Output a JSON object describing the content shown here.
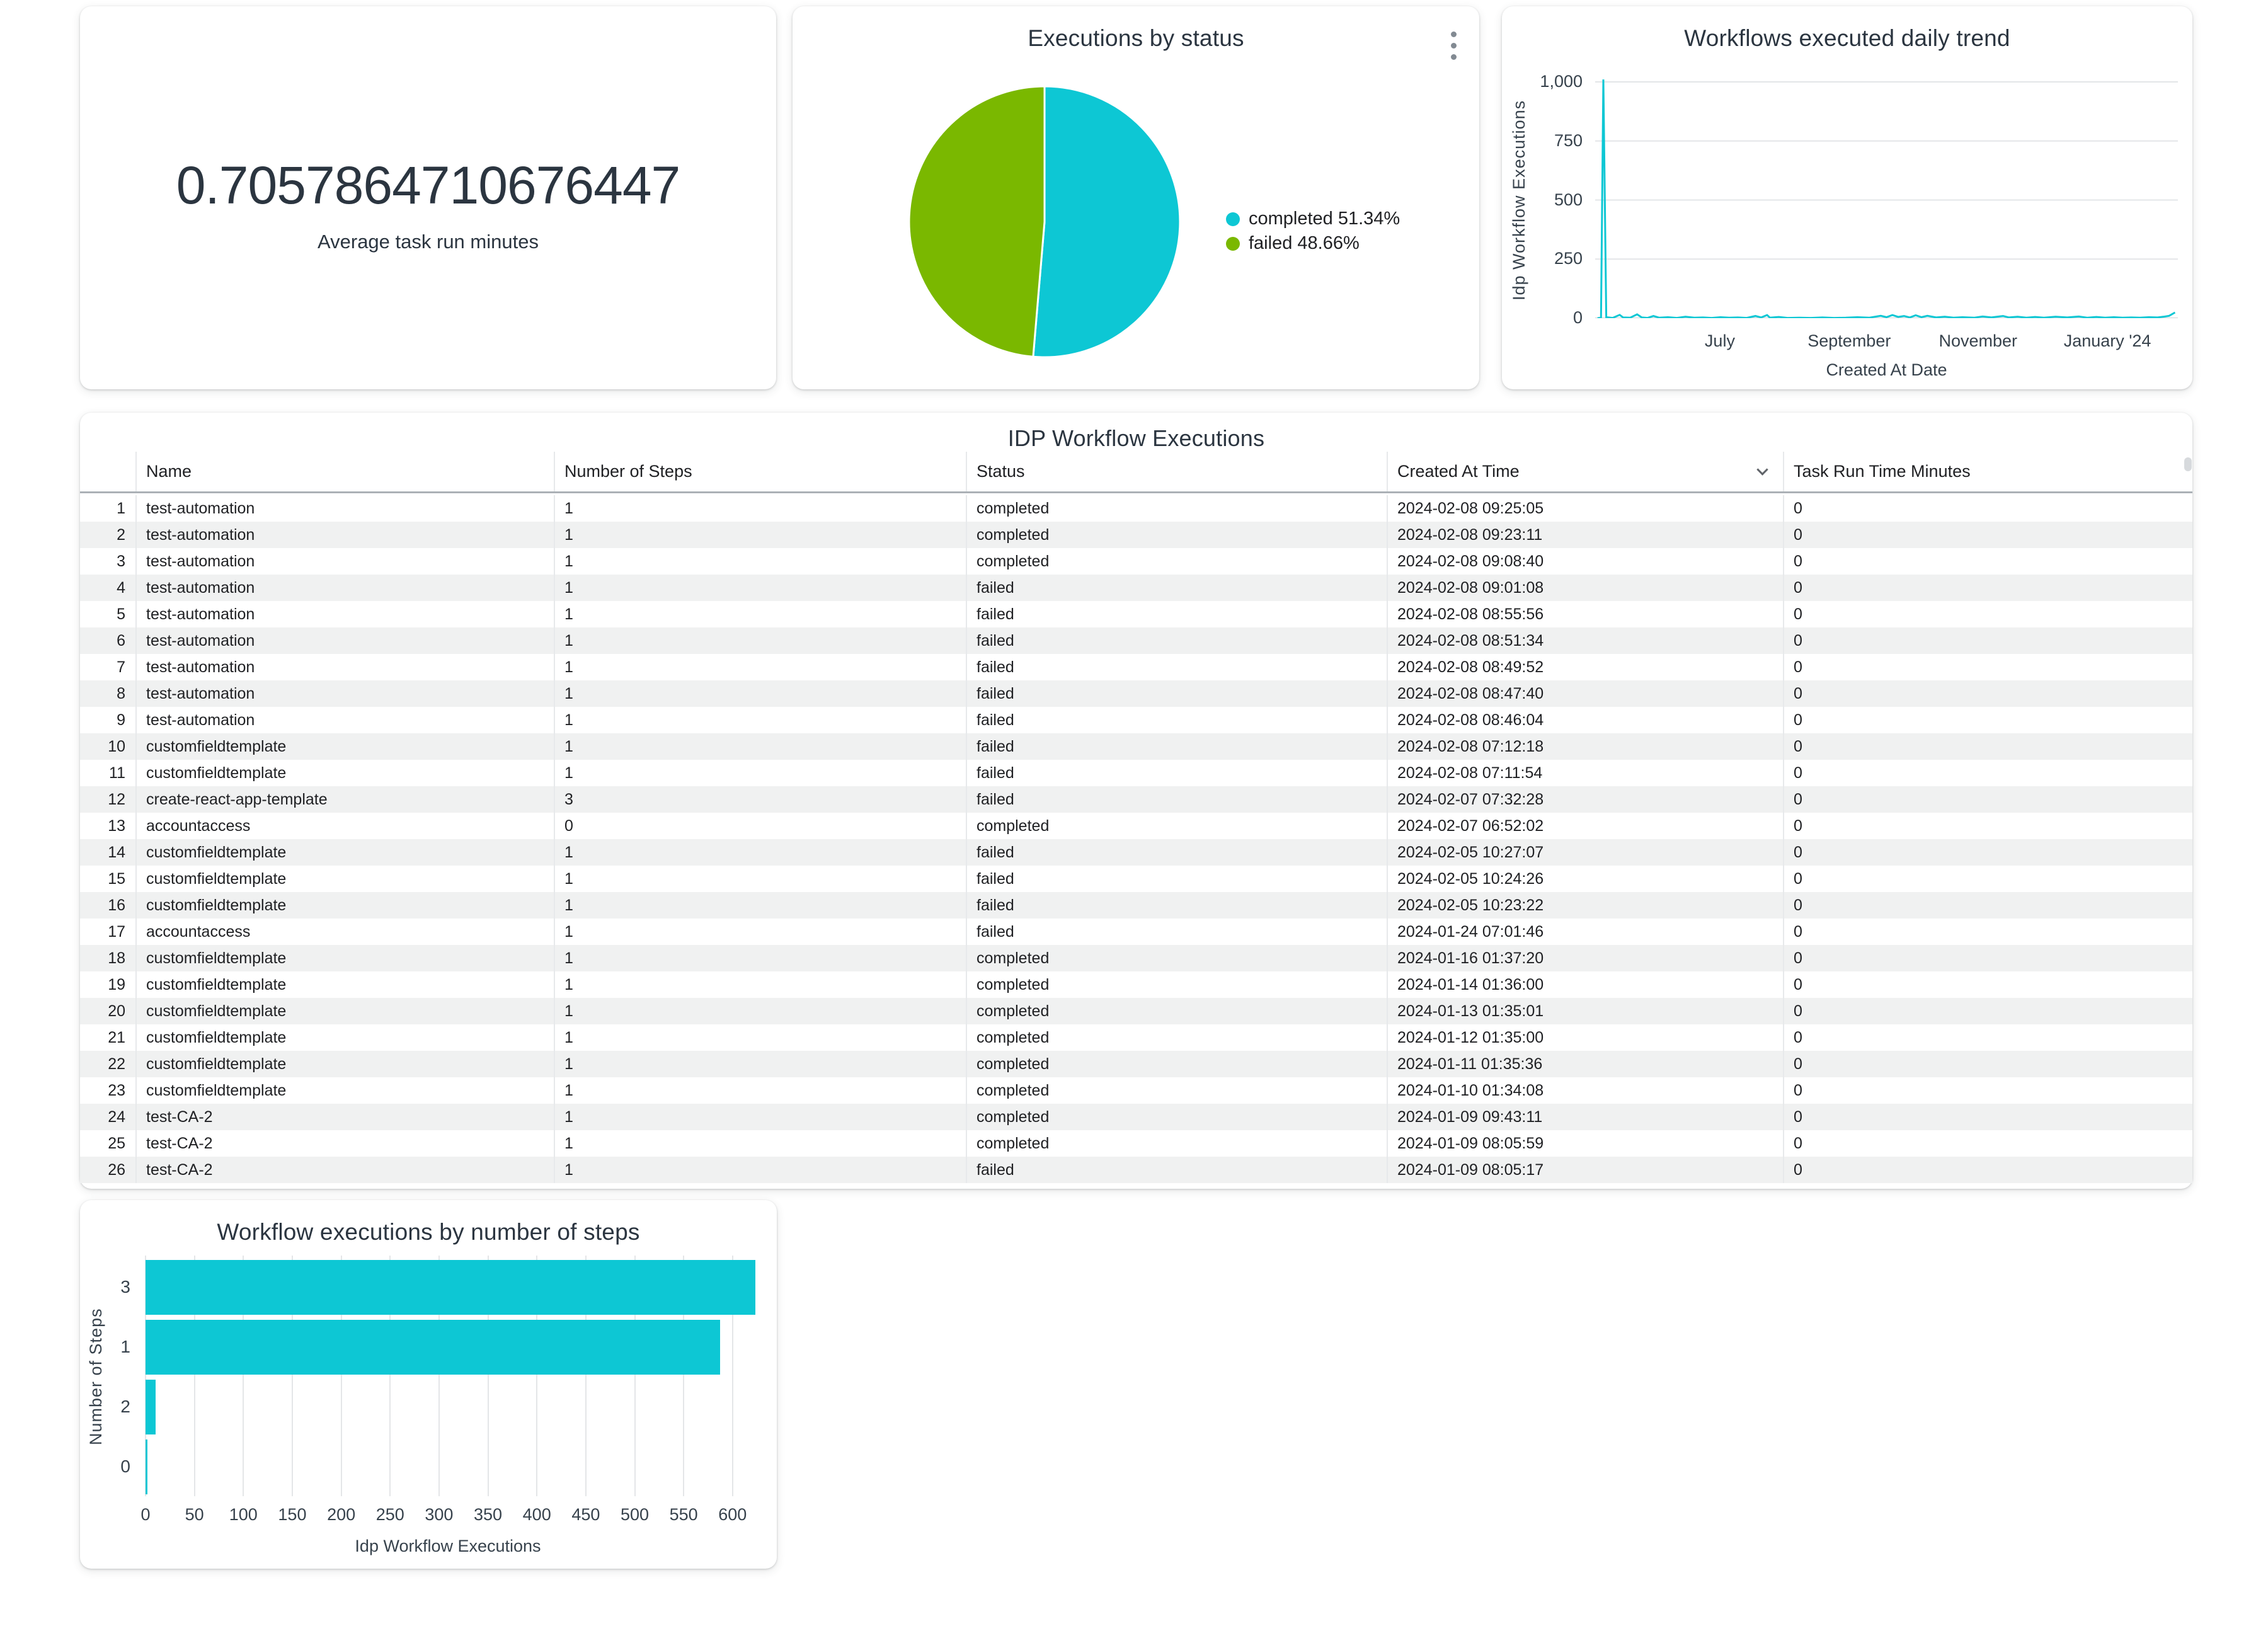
{
  "colors": {
    "accent_cyan": "#0DC7D4",
    "accent_green": "#7AB800",
    "grid_line": "#e3e6e8",
    "axis_text": "#37424c",
    "row_stripe": "#f0f1f1"
  },
  "scorecard": {
    "value": "0.7057864710676447",
    "label": "Average task run minutes"
  },
  "chart_data": [
    {
      "id": "executions-by-status",
      "type": "pie",
      "title": "Executions by status",
      "legend_position": "right",
      "slices": [
        {
          "label": "completed",
          "value": 51.34,
          "color": "#0DC7D4"
        },
        {
          "label": "failed",
          "value": 48.66,
          "color": "#7AB800"
        }
      ]
    },
    {
      "id": "workflows-executed-daily-trend",
      "type": "line",
      "title": "Workflows executed daily trend",
      "xlabel": "Created At Date",
      "ylabel": "Idp Workflow Executions",
      "ylim": [
        0,
        1000
      ],
      "yticks": [
        0,
        250,
        500,
        750,
        1000
      ],
      "ytick_labels": [
        "0",
        "250",
        "500",
        "750",
        "1,000"
      ],
      "xticks": [
        {
          "label": "July",
          "pos": 0.214
        },
        {
          "label": "September",
          "pos": 0.436
        },
        {
          "label": "November",
          "pos": 0.657
        },
        {
          "label": "January '24",
          "pos": 0.879
        }
      ],
      "grid": "horizontal",
      "line_color": "#0DC7D4",
      "points": [
        [
          0.004,
          0
        ],
        [
          0.01,
          2
        ],
        [
          0.014,
          1010
        ],
        [
          0.019,
          4
        ],
        [
          0.03,
          1
        ],
        [
          0.042,
          14
        ],
        [
          0.048,
          3
        ],
        [
          0.06,
          2
        ],
        [
          0.072,
          16
        ],
        [
          0.08,
          3
        ],
        [
          0.09,
          1
        ],
        [
          0.1,
          9
        ],
        [
          0.11,
          2
        ],
        [
          0.125,
          4
        ],
        [
          0.14,
          1
        ],
        [
          0.155,
          6
        ],
        [
          0.17,
          2
        ],
        [
          0.185,
          3
        ],
        [
          0.2,
          1
        ],
        [
          0.215,
          4
        ],
        [
          0.23,
          2
        ],
        [
          0.245,
          3
        ],
        [
          0.26,
          1
        ],
        [
          0.275,
          9
        ],
        [
          0.285,
          3
        ],
        [
          0.295,
          13
        ],
        [
          0.3,
          2
        ],
        [
          0.315,
          5
        ],
        [
          0.33,
          1
        ],
        [
          0.35,
          2
        ],
        [
          0.37,
          1
        ],
        [
          0.39,
          3
        ],
        [
          0.41,
          1
        ],
        [
          0.43,
          2
        ],
        [
          0.45,
          4
        ],
        [
          0.47,
          2
        ],
        [
          0.49,
          10
        ],
        [
          0.5,
          4
        ],
        [
          0.51,
          13
        ],
        [
          0.52,
          5
        ],
        [
          0.53,
          9
        ],
        [
          0.54,
          3
        ],
        [
          0.55,
          12
        ],
        [
          0.56,
          4
        ],
        [
          0.57,
          10
        ],
        [
          0.585,
          3
        ],
        [
          0.6,
          6
        ],
        [
          0.615,
          2
        ],
        [
          0.63,
          4
        ],
        [
          0.65,
          2
        ],
        [
          0.665,
          7
        ],
        [
          0.68,
          3
        ],
        [
          0.7,
          9
        ],
        [
          0.71,
          3
        ],
        [
          0.725,
          6
        ],
        [
          0.74,
          2
        ],
        [
          0.755,
          5
        ],
        [
          0.77,
          2
        ],
        [
          0.79,
          6
        ],
        [
          0.81,
          3
        ],
        [
          0.83,
          7
        ],
        [
          0.845,
          2
        ],
        [
          0.86,
          5
        ],
        [
          0.875,
          2
        ],
        [
          0.89,
          4
        ],
        [
          0.905,
          2
        ],
        [
          0.92,
          3
        ],
        [
          0.935,
          2
        ],
        [
          0.95,
          4
        ],
        [
          0.965,
          3
        ],
        [
          0.975,
          6
        ],
        [
          0.985,
          10
        ],
        [
          0.995,
          24
        ]
      ]
    },
    {
      "id": "workflow-executions-by-number-of-steps",
      "type": "bar",
      "orientation": "horizontal",
      "title": "Workflow executions by number of steps",
      "xlabel": "Idp Workflow Executions",
      "ylabel": "Number of Steps",
      "categories": [
        "3",
        "1",
        "2",
        "0"
      ],
      "values": [
        623,
        587,
        10,
        2
      ],
      "xlim": [
        0,
        625
      ],
      "xticks": [
        0,
        50,
        100,
        150,
        200,
        250,
        300,
        350,
        400,
        450,
        500,
        550,
        600
      ],
      "grid": "vertical",
      "bar_color": "#0DC7D4"
    }
  ],
  "table": {
    "title": "IDP Workflow Executions",
    "columns": [
      "Name",
      "Number of Steps",
      "Status",
      "Created At Time",
      "Task Run Time Minutes"
    ],
    "sorted_column": "Created At Time",
    "sort_icon": "chevron-down",
    "rows": [
      [
        "test-automation",
        "1",
        "completed",
        "2024-02-08 09:25:05",
        "0"
      ],
      [
        "test-automation",
        "1",
        "completed",
        "2024-02-08 09:23:11",
        "0"
      ],
      [
        "test-automation",
        "1",
        "completed",
        "2024-02-08 09:08:40",
        "0"
      ],
      [
        "test-automation",
        "1",
        "failed",
        "2024-02-08 09:01:08",
        "0"
      ],
      [
        "test-automation",
        "1",
        "failed",
        "2024-02-08 08:55:56",
        "0"
      ],
      [
        "test-automation",
        "1",
        "failed",
        "2024-02-08 08:51:34",
        "0"
      ],
      [
        "test-automation",
        "1",
        "failed",
        "2024-02-08 08:49:52",
        "0"
      ],
      [
        "test-automation",
        "1",
        "failed",
        "2024-02-08 08:47:40",
        "0"
      ],
      [
        "test-automation",
        "1",
        "failed",
        "2024-02-08 08:46:04",
        "0"
      ],
      [
        "customfieldtemplate",
        "1",
        "failed",
        "2024-02-08 07:12:18",
        "0"
      ],
      [
        "customfieldtemplate",
        "1",
        "failed",
        "2024-02-08 07:11:54",
        "0"
      ],
      [
        "create-react-app-template",
        "3",
        "failed",
        "2024-02-07 07:32:28",
        "0"
      ],
      [
        "accountaccess",
        "0",
        "completed",
        "2024-02-07 06:52:02",
        "0"
      ],
      [
        "customfieldtemplate",
        "1",
        "failed",
        "2024-02-05 10:27:07",
        "0"
      ],
      [
        "customfieldtemplate",
        "1",
        "failed",
        "2024-02-05 10:24:26",
        "0"
      ],
      [
        "customfieldtemplate",
        "1",
        "failed",
        "2024-02-05 10:23:22",
        "0"
      ],
      [
        "accountaccess",
        "1",
        "failed",
        "2024-01-24 07:01:46",
        "0"
      ],
      [
        "customfieldtemplate",
        "1",
        "completed",
        "2024-01-16 01:37:20",
        "0"
      ],
      [
        "customfieldtemplate",
        "1",
        "completed",
        "2024-01-14 01:36:00",
        "0"
      ],
      [
        "customfieldtemplate",
        "1",
        "completed",
        "2024-01-13 01:35:01",
        "0"
      ],
      [
        "customfieldtemplate",
        "1",
        "completed",
        "2024-01-12 01:35:00",
        "0"
      ],
      [
        "customfieldtemplate",
        "1",
        "completed",
        "2024-01-11 01:35:36",
        "0"
      ],
      [
        "customfieldtemplate",
        "1",
        "completed",
        "2024-01-10 01:34:08",
        "0"
      ],
      [
        "test-CA-2",
        "1",
        "completed",
        "2024-01-09 09:43:11",
        "0"
      ],
      [
        "test-CA-2",
        "1",
        "completed",
        "2024-01-09 08:05:59",
        "0"
      ],
      [
        "test-CA-2",
        "1",
        "failed",
        "2024-01-09 08:05:17",
        "0"
      ]
    ]
  }
}
